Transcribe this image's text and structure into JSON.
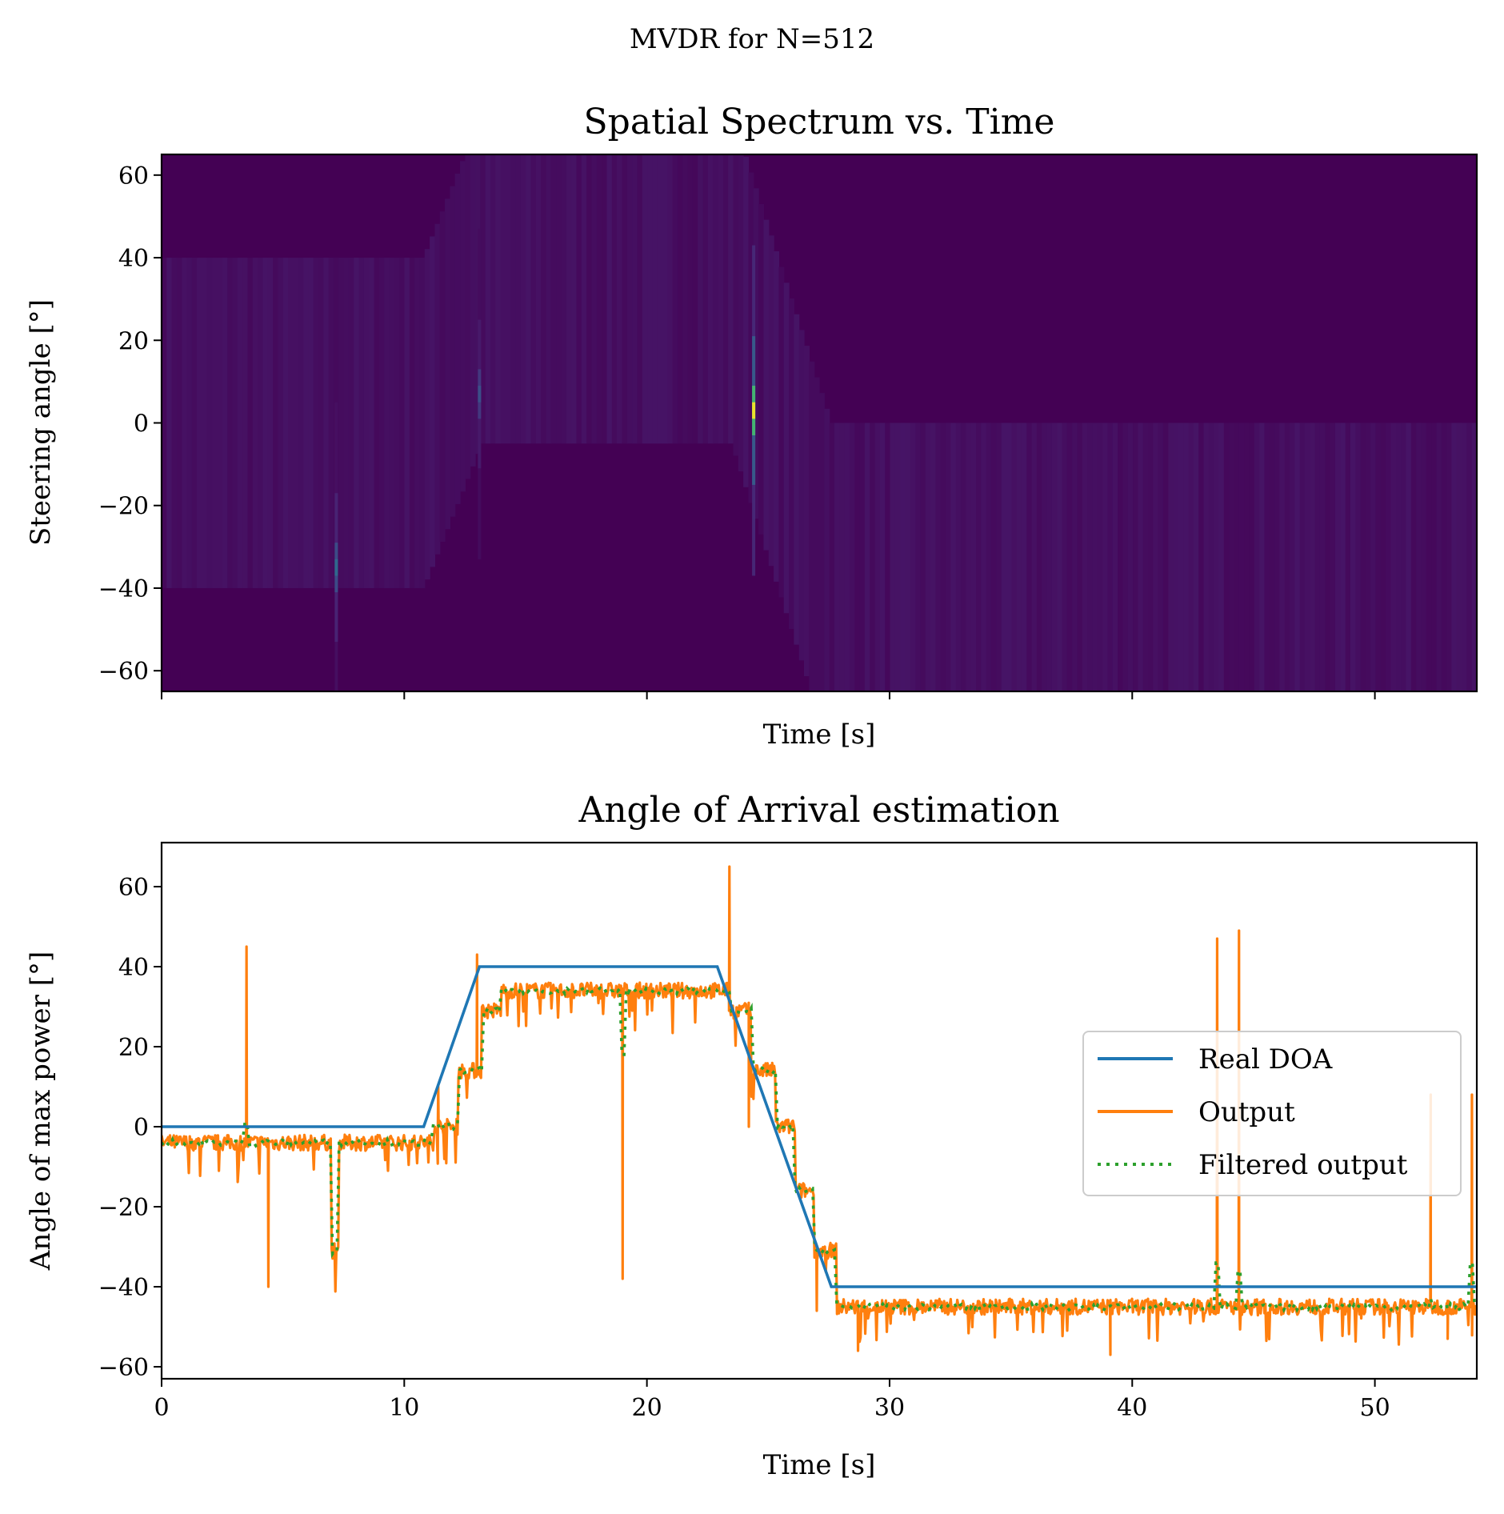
{
  "suptitle": "MVDR for N=512",
  "chart_data": [
    {
      "type": "heatmap",
      "title": "Spatial Spectrum vs. Time",
      "xlabel": "Time [s]",
      "ylabel": "Steering angle [°]",
      "xlim": [
        0,
        54.2
      ],
      "ylim": [
        -65,
        65
      ],
      "xticks": [
        0,
        10,
        20,
        30,
        40,
        50
      ],
      "xtick_labels_visible": false,
      "yticks": [
        -60,
        -40,
        -20,
        0,
        20,
        40,
        60
      ],
      "ytick_labels": [
        "−60",
        "−40",
        "−20",
        "0",
        "20",
        "40",
        "60"
      ],
      "colormap": "viridis",
      "track": [
        [
          0,
          0
        ],
        [
          10.8,
          0
        ],
        [
          13.2,
          35
        ],
        [
          23.5,
          35
        ],
        [
          27.6,
          -40
        ],
        [
          54.2,
          -40
        ]
      ],
      "peaks": [
        {
          "t": 7.2,
          "angle": -35,
          "intensity": 0.35
        },
        {
          "t": 24.4,
          "angle": 3,
          "intensity": 1.0
        },
        {
          "t": 13.1,
          "angle": 7,
          "intensity": 0.25
        }
      ],
      "grid": false
    },
    {
      "type": "line",
      "title": "Angle of Arrival estimation",
      "xlabel": "Time [s]",
      "ylabel": "Angle of max power [°]",
      "xlim": [
        0,
        54.2
      ],
      "ylim": [
        -63,
        71
      ],
      "xticks": [
        0,
        10,
        20,
        30,
        40,
        50
      ],
      "xtick_labels": [
        "0",
        "10",
        "20",
        "30",
        "40",
        "50"
      ],
      "yticks": [
        -60,
        -40,
        -20,
        0,
        20,
        40,
        60
      ],
      "ytick_labels": [
        "−60",
        "−40",
        "−20",
        "0",
        "20",
        "40",
        "60"
      ],
      "legend": {
        "position": "right",
        "labels": [
          "Real DOA",
          "Output",
          "Filtered output"
        ]
      },
      "grid": false,
      "series": [
        {
          "name": "Real DOA",
          "color": "#1f77b4",
          "style": "solid",
          "x": [
            0,
            10.8,
            13.1,
            22.9,
            27.6,
            54.2
          ],
          "y": [
            0,
            0,
            40,
            40,
            -40,
            -40
          ]
        },
        {
          "name": "Output",
          "color": "#ff7f0e",
          "style": "solid",
          "steps": [
            {
              "t0": 0,
              "t1": 11.2,
              "level": -4
            },
            {
              "t0": 11.2,
              "t1": 12.2,
              "level": 0
            },
            {
              "t0": 12.2,
              "t1": 13.2,
              "level": 14
            },
            {
              "t0": 13.2,
              "t1": 14.0,
              "level": 29
            },
            {
              "t0": 14.0,
              "t1": 23.4,
              "level": 34
            },
            {
              "t0": 23.4,
              "t1": 24.3,
              "level": 29
            },
            {
              "t0": 24.3,
              "t1": 25.3,
              "level": 14
            },
            {
              "t0": 25.3,
              "t1": 26.1,
              "level": 0
            },
            {
              "t0": 26.1,
              "t1": 26.9,
              "level": -16
            },
            {
              "t0": 26.9,
              "t1": 27.8,
              "level": -31
            },
            {
              "t0": 27.8,
              "t1": 54.2,
              "level": -45
            }
          ],
          "dips": [
            {
              "t0": 7.0,
              "t1": 7.3,
              "level": -31
            }
          ],
          "spikes": [
            {
              "t": 3.5,
              "y": 45
            },
            {
              "t": 4.4,
              "y": -40
            },
            {
              "t": 11.4,
              "y": 10
            },
            {
              "t": 13.0,
              "y": 43
            },
            {
              "t": 19.0,
              "y": -38
            },
            {
              "t": 23.4,
              "y": 65
            },
            {
              "t": 24.2,
              "y": 0
            },
            {
              "t": 27.0,
              "y": -46
            },
            {
              "t": 28.7,
              "y": -56
            },
            {
              "t": 39.1,
              "y": -57
            },
            {
              "t": 43.5,
              "y": 47
            },
            {
              "t": 44.4,
              "y": 49
            },
            {
              "t": 52.3,
              "y": 8
            },
            {
              "t": 53.0,
              "y": -53
            },
            {
              "t": 54.0,
              "y": 8
            }
          ]
        },
        {
          "name": "Filtered output",
          "color": "#2ca02c",
          "style": "dotted",
          "follows": "Output",
          "bumps": [
            {
              "t": 3.5,
              "y": 1
            },
            {
              "t": 7.2,
              "y": -31
            },
            {
              "t": 19.0,
              "y": 18
            },
            {
              "t": 43.5,
              "y": -34
            },
            {
              "t": 44.4,
              "y": -36
            },
            {
              "t": 52.3,
              "y": -43
            },
            {
              "t": 54.0,
              "y": -34
            }
          ]
        }
      ]
    }
  ]
}
